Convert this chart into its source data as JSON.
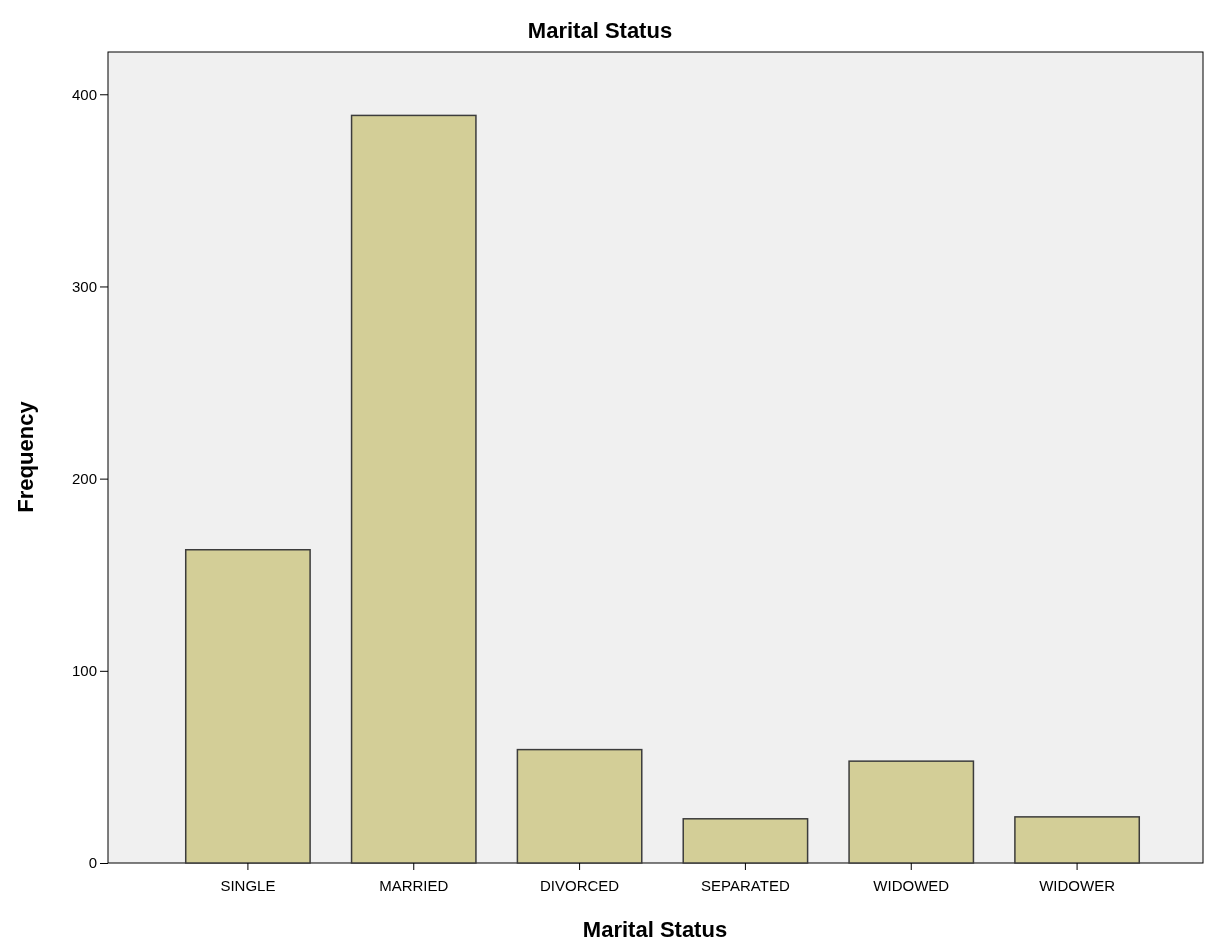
{
  "chart_data": {
    "type": "bar",
    "title": "Marital Status",
    "xlabel": "Marital Status",
    "ylabel": "Frequency",
    "categories": [
      "SINGLE",
      "MARRIED",
      "DIVORCED",
      "SEPARATED",
      "WIDOWED",
      "WIDOWER"
    ],
    "values": [
      163,
      389,
      59,
      23,
      53,
      24
    ],
    "color": "#d3ce97",
    "ylim": [
      0,
      422
    ],
    "yticks": [
      0,
      100,
      200,
      300,
      400
    ],
    "grid": false
  }
}
